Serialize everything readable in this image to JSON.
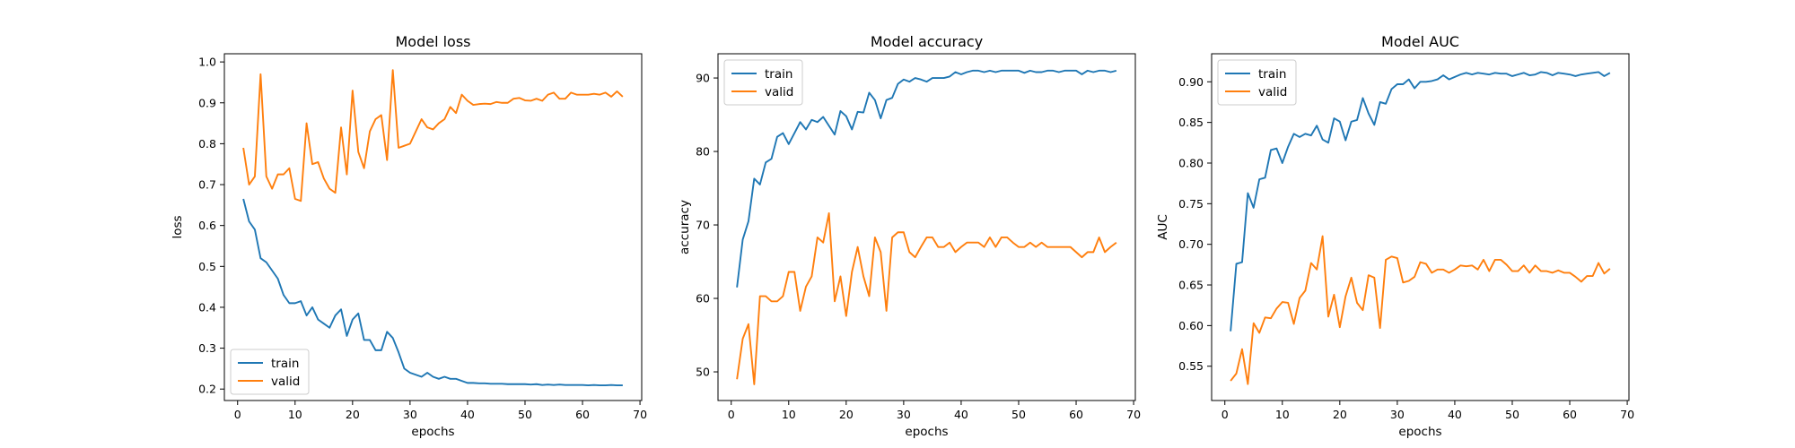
{
  "chart_data": [
    {
      "type": "line",
      "title": "Model loss",
      "xlabel": "epochs",
      "ylabel": "loss",
      "xlim": [
        -2.3,
        70.3
      ],
      "ylim": [
        0.172,
        1.02
      ],
      "xticks": [
        0,
        10,
        20,
        30,
        40,
        50,
        60,
        70
      ],
      "yticks": [
        0.2,
        0.3,
        0.4,
        0.5,
        0.6,
        0.7,
        0.8,
        0.9,
        1.0
      ],
      "ytick_labels": [
        "0.2",
        "0.3",
        "0.4",
        "0.5",
        "0.6",
        "0.7",
        "0.8",
        "0.9",
        "1.0"
      ],
      "grid": false,
      "legend_position": "lower-left",
      "series": [
        {
          "name": "train",
          "color": "#1f77b4",
          "y": [
            0.665,
            0.61,
            0.59,
            0.52,
            0.51,
            0.49,
            0.47,
            0.43,
            0.41,
            0.41,
            0.415,
            0.38,
            0.4,
            0.37,
            0.36,
            0.35,
            0.38,
            0.395,
            0.33,
            0.37,
            0.385,
            0.32,
            0.32,
            0.295,
            0.295,
            0.34,
            0.325,
            0.29,
            0.25,
            0.24,
            0.235,
            0.23,
            0.24,
            0.23,
            0.225,
            0.23,
            0.225,
            0.225,
            0.22,
            0.215,
            0.215,
            0.214,
            0.214,
            0.213,
            0.213,
            0.213,
            0.212,
            0.212,
            0.212,
            0.212,
            0.211,
            0.212,
            0.21,
            0.211,
            0.21,
            0.211,
            0.21,
            0.21,
            0.21,
            0.21,
            0.209,
            0.21,
            0.209,
            0.209,
            0.21,
            0.209,
            0.209
          ]
        },
        {
          "name": "valid",
          "color": "#ff7f0e",
          "y": [
            0.79,
            0.7,
            0.72,
            0.97,
            0.72,
            0.69,
            0.725,
            0.725,
            0.74,
            0.665,
            0.66,
            0.85,
            0.75,
            0.755,
            0.715,
            0.69,
            0.68,
            0.84,
            0.725,
            0.93,
            0.78,
            0.74,
            0.83,
            0.86,
            0.87,
            0.76,
            0.98,
            0.79,
            0.795,
            0.8,
            0.83,
            0.86,
            0.84,
            0.835,
            0.85,
            0.86,
            0.89,
            0.875,
            0.92,
            0.905,
            0.895,
            0.897,
            0.898,
            0.897,
            0.902,
            0.9,
            0.9,
            0.91,
            0.912,
            0.906,
            0.905,
            0.91,
            0.905,
            0.92,
            0.925,
            0.91,
            0.91,
            0.925,
            0.92,
            0.92,
            0.92,
            0.922,
            0.92,
            0.925,
            0.915,
            0.928,
            0.915
          ]
        }
      ]
    },
    {
      "type": "line",
      "title": "Model accuracy",
      "xlabel": "epochs",
      "ylabel": "accuracy",
      "xlim": [
        -2.3,
        70.3
      ],
      "ylim": [
        46.1,
        93.3
      ],
      "xticks": [
        0,
        10,
        20,
        30,
        40,
        50,
        60,
        70
      ],
      "yticks": [
        50,
        60,
        70,
        80,
        90
      ],
      "ytick_labels": [
        "50",
        "60",
        "70",
        "80",
        "90"
      ],
      "grid": false,
      "legend_position": "upper-left",
      "series": [
        {
          "name": "train",
          "color": "#1f77b4",
          "y": [
            61.5,
            68,
            70.5,
            76.3,
            75.5,
            78.5,
            79,
            82,
            82.5,
            81,
            82.5,
            84,
            83,
            84.3,
            84,
            84.7,
            83.5,
            82.3,
            85.5,
            84.8,
            83,
            85.4,
            85.3,
            88,
            87,
            84.5,
            87,
            87.3,
            89.2,
            89.8,
            89.5,
            90,
            89.8,
            89.5,
            90,
            90,
            90,
            90.2,
            90.8,
            90.5,
            90.8,
            91,
            91,
            90.8,
            91,
            90.8,
            91,
            91,
            91,
            91,
            90.7,
            91,
            90.8,
            90.8,
            91,
            91,
            90.8,
            91,
            91,
            91,
            90.5,
            91,
            90.8,
            91,
            91,
            90.8,
            91
          ]
        },
        {
          "name": "valid",
          "color": "#ff7f0e",
          "y": [
            49,
            54.5,
            56.5,
            48.3,
            60.3,
            60.3,
            59.6,
            59.6,
            60.3,
            63.6,
            63.6,
            58.3,
            61.6,
            63,
            68.3,
            67.6,
            71.6,
            59.6,
            63,
            57.6,
            63.6,
            67,
            63,
            60.3,
            68.3,
            66.3,
            58.3,
            68.3,
            69,
            69,
            66.3,
            65.6,
            67,
            68.3,
            68.3,
            67,
            67,
            67.6,
            66.3,
            67,
            67.6,
            67.6,
            67.6,
            67,
            68.3,
            67,
            68.3,
            68.3,
            67.6,
            67,
            67,
            67.6,
            67,
            67.6,
            67,
            67,
            67,
            67,
            67,
            66.3,
            65.6,
            66.3,
            66.3,
            68.3,
            66.3,
            67,
            67.6
          ]
        }
      ]
    },
    {
      "type": "line",
      "title": "Model AUC",
      "xlabel": "epochs",
      "ylabel": "AUC",
      "xlim": [
        -2.3,
        70.3
      ],
      "ylim": [
        0.5078,
        0.9345
      ],
      "xticks": [
        0,
        10,
        20,
        30,
        40,
        50,
        60,
        70
      ],
      "yticks": [
        0.55,
        0.6,
        0.65,
        0.7,
        0.75,
        0.8,
        0.85,
        0.9
      ],
      "ytick_labels": [
        "0.55",
        "0.60",
        "0.65",
        "0.70",
        "0.75",
        "0.80",
        "0.85",
        "0.90"
      ],
      "grid": false,
      "legend_position": "upper-left",
      "series": [
        {
          "name": "train",
          "color": "#1f77b4",
          "y": [
            0.593,
            0.676,
            0.678,
            0.763,
            0.745,
            0.78,
            0.782,
            0.816,
            0.818,
            0.8,
            0.82,
            0.836,
            0.832,
            0.836,
            0.834,
            0.846,
            0.829,
            0.825,
            0.855,
            0.851,
            0.828,
            0.851,
            0.853,
            0.88,
            0.861,
            0.847,
            0.875,
            0.873,
            0.891,
            0.897,
            0.897,
            0.903,
            0.892,
            0.9,
            0.9,
            0.901,
            0.903,
            0.908,
            0.903,
            0.906,
            0.909,
            0.911,
            0.909,
            0.911,
            0.91,
            0.909,
            0.911,
            0.91,
            0.91,
            0.907,
            0.909,
            0.911,
            0.908,
            0.909,
            0.912,
            0.911,
            0.908,
            0.911,
            0.91,
            0.909,
            0.907,
            0.909,
            0.91,
            0.911,
            0.912,
            0.907,
            0.911
          ]
        },
        {
          "name": "valid",
          "color": "#ff7f0e",
          "y": [
            0.532,
            0.541,
            0.571,
            0.528,
            0.603,
            0.591,
            0.61,
            0.609,
            0.621,
            0.629,
            0.628,
            0.602,
            0.634,
            0.643,
            0.677,
            0.669,
            0.71,
            0.611,
            0.638,
            0.598,
            0.636,
            0.659,
            0.628,
            0.619,
            0.662,
            0.659,
            0.597,
            0.681,
            0.685,
            0.683,
            0.653,
            0.655,
            0.66,
            0.678,
            0.676,
            0.665,
            0.669,
            0.669,
            0.665,
            0.669,
            0.674,
            0.673,
            0.674,
            0.669,
            0.681,
            0.667,
            0.681,
            0.681,
            0.675,
            0.667,
            0.667,
            0.674,
            0.665,
            0.674,
            0.667,
            0.667,
            0.665,
            0.668,
            0.665,
            0.665,
            0.66,
            0.654,
            0.661,
            0.661,
            0.677,
            0.664,
            0.67
          ]
        }
      ]
    }
  ]
}
